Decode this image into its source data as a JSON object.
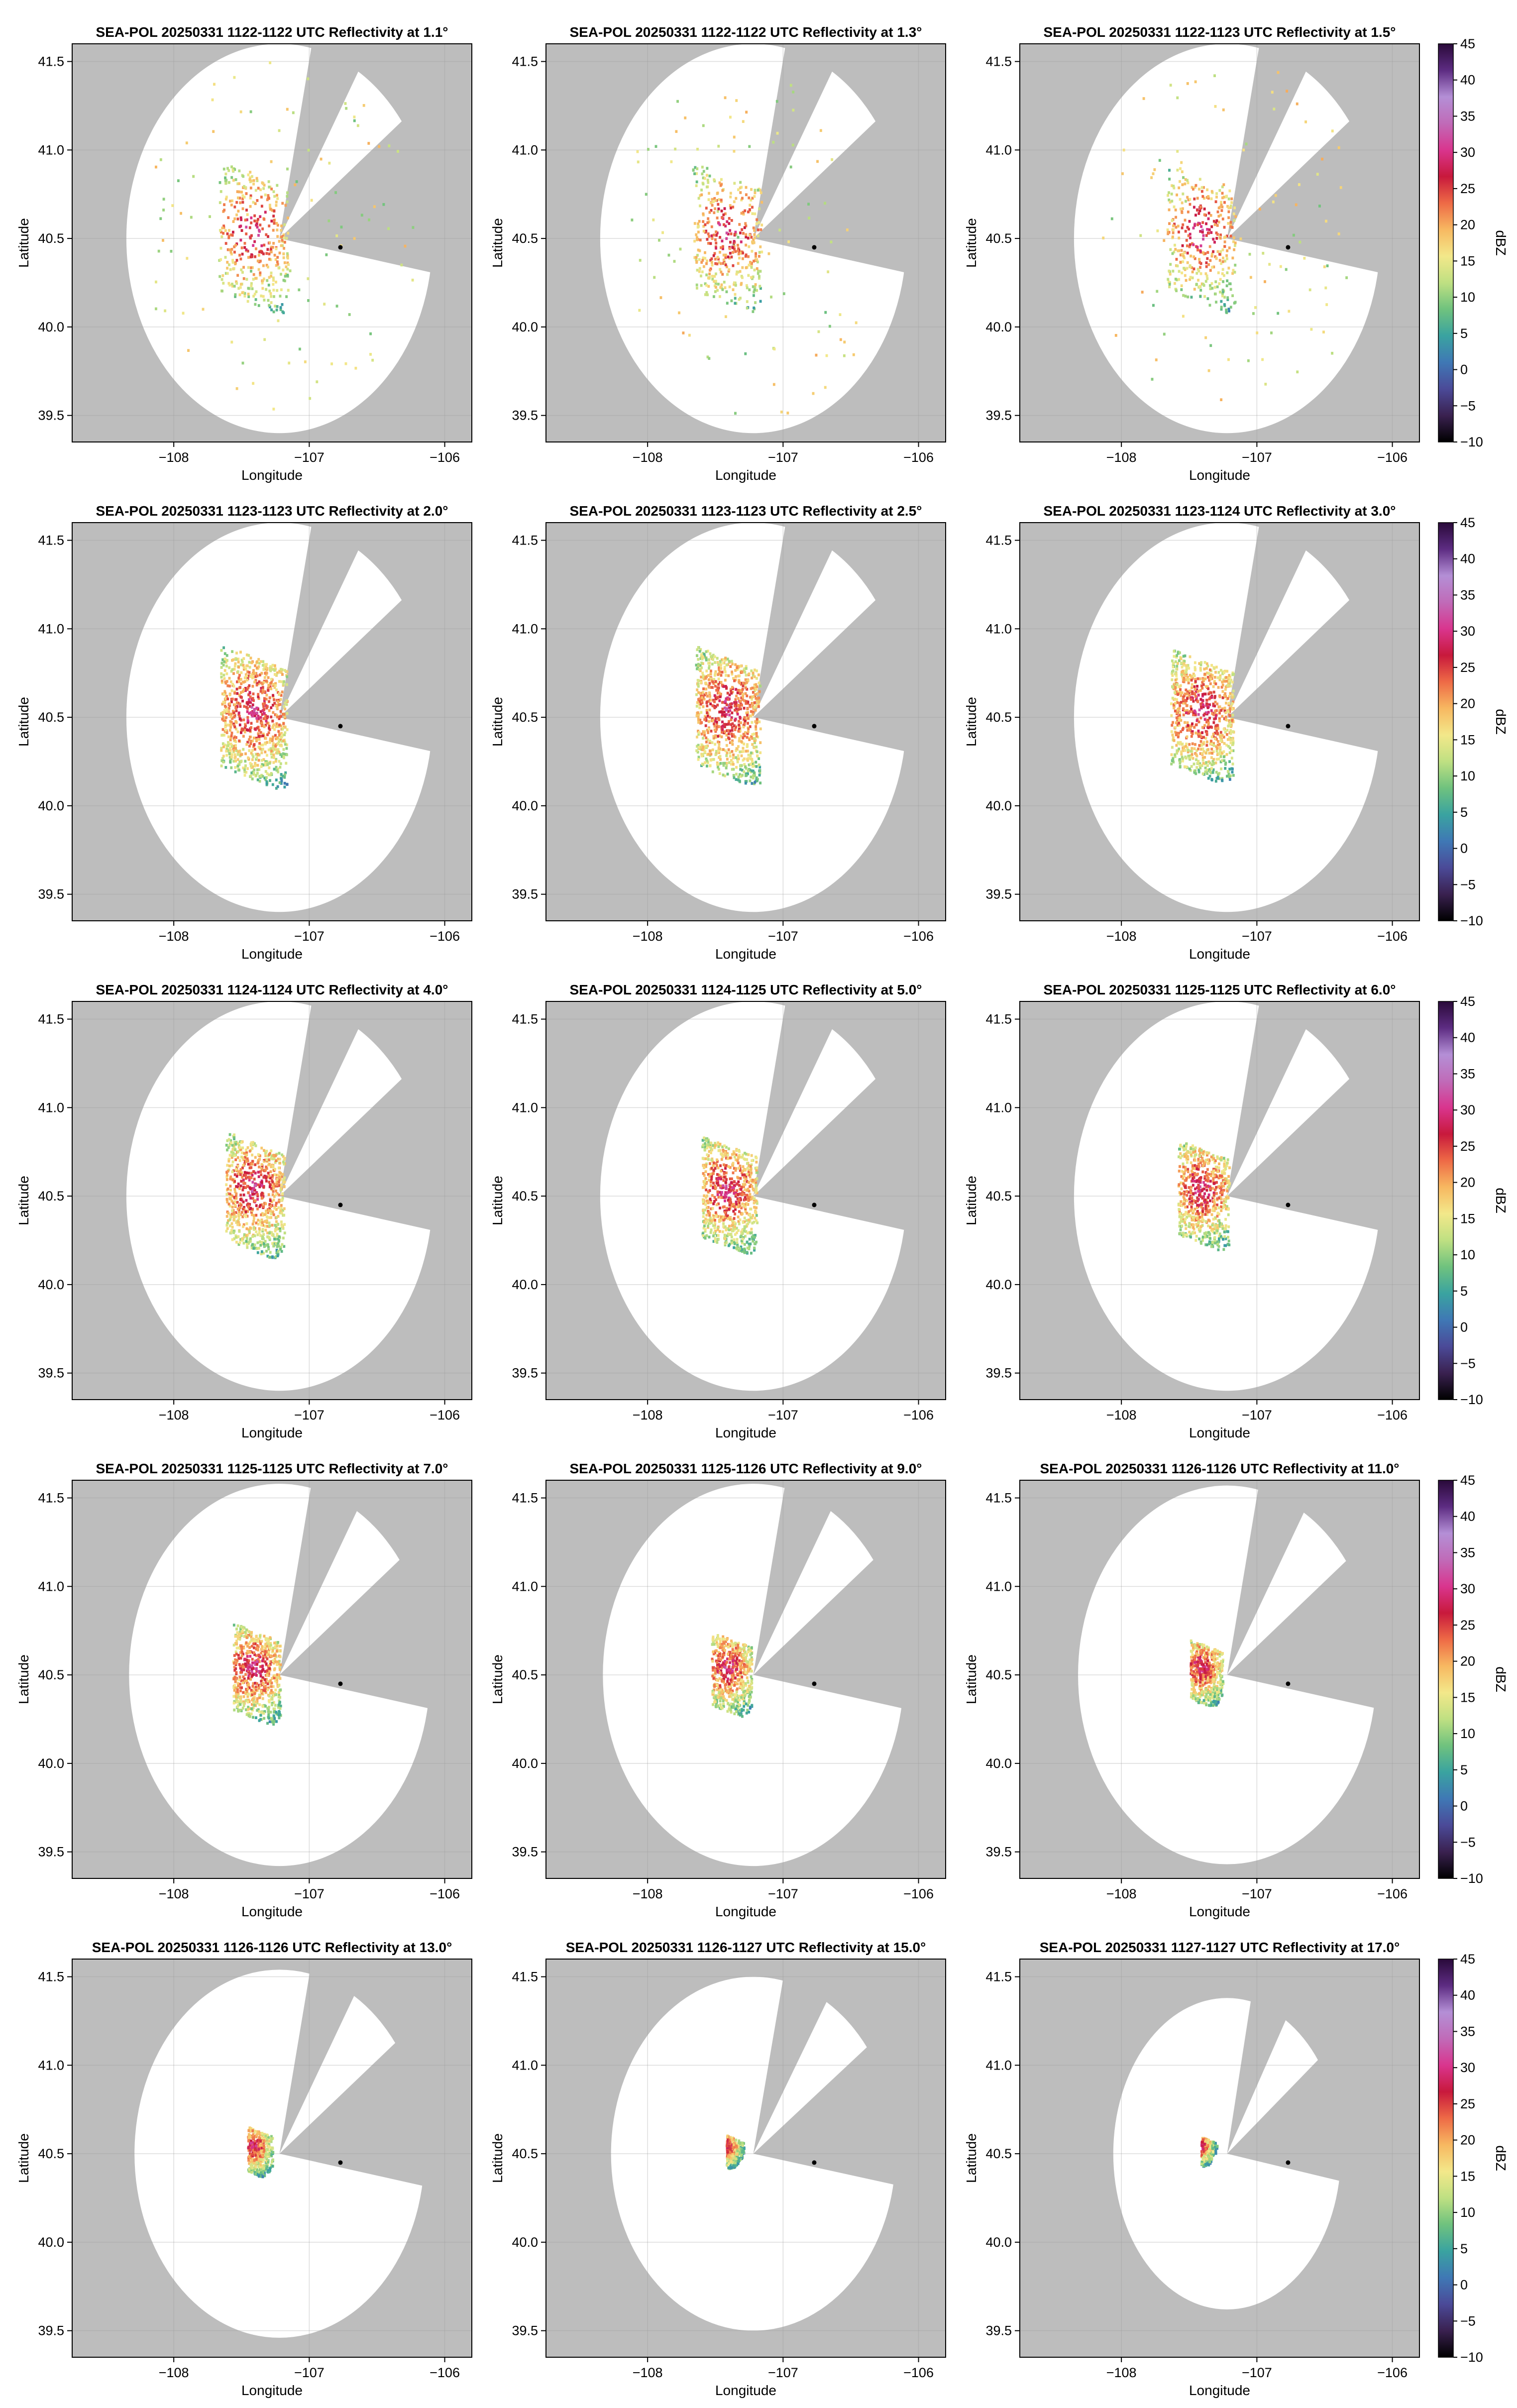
{
  "figure": {
    "colorbar_label": "dBZ",
    "colorbar_ticks": [
      -10,
      -5,
      0,
      5,
      10,
      15,
      20,
      25,
      30,
      35,
      40,
      45
    ],
    "colorbar_range": [
      -10,
      45
    ],
    "colormap_stops": [
      "#000000",
      "#3a2150",
      "#4b4a98",
      "#3f78b5",
      "#3aa3a0",
      "#6fc27e",
      "#bfe082",
      "#f3e88a",
      "#f7b861",
      "#ee6a46",
      "#c8193c",
      "#d9358e",
      "#c06bb8",
      "#b48fd6",
      "#5d2c82",
      "#2a0a3a"
    ]
  },
  "chart_data": [
    {
      "type": "heatmap",
      "title": "SEA-POL 20250331 1122-1122 UTC Reflectivity at 1.1°",
      "elevation_deg": 1.1,
      "xlabel": "Longitude",
      "ylabel": "Latitude",
      "xlim": [
        -108.75,
        -105.8
      ],
      "ylim": [
        39.35,
        41.6
      ],
      "x_ticks": [
        -108,
        -107,
        -106
      ],
      "x_tick_labels": [
        "−108",
        "−107",
        "−106"
      ],
      "y_ticks": [
        39.5,
        40.0,
        40.5,
        41.0,
        41.5
      ],
      "y_tick_labels": [
        "39.5",
        "40.0",
        "40.5",
        "41.0",
        "41.5"
      ],
      "radar_center": [
        -107.22,
        40.5
      ],
      "marker": [
        -106.77,
        40.45
      ],
      "range_deg": 1.13,
      "range_lat_deg": 1.1,
      "blocked_sectors_deg": [
        [
          12,
          31
        ],
        [
          53,
          100
        ]
      ]
    },
    {
      "type": "heatmap",
      "title": "SEA-POL 20250331 1122-1122 UTC Reflectivity at 1.3°",
      "elevation_deg": 1.3,
      "xlabel": "Longitude",
      "ylabel": "Latitude",
      "xlim": [
        -108.75,
        -105.8
      ],
      "ylim": [
        39.35,
        41.6
      ],
      "x_ticks": [
        -108,
        -107,
        -106
      ],
      "x_tick_labels": [
        "−108",
        "−107",
        "−106"
      ],
      "y_ticks": [
        39.5,
        40.0,
        40.5,
        41.0,
        41.5
      ],
      "y_tick_labels": [
        "39.5",
        "40.0",
        "40.5",
        "41.0",
        "41.5"
      ],
      "radar_center": [
        -107.22,
        40.5
      ],
      "marker": [
        -106.77,
        40.45
      ],
      "range_deg": 1.13,
      "range_lat_deg": 1.1,
      "blocked_sectors_deg": [
        [
          12,
          31
        ],
        [
          53,
          100
        ]
      ]
    },
    {
      "type": "heatmap",
      "title": "SEA-POL 20250331 1122-1123 UTC Reflectivity at 1.5°",
      "elevation_deg": 1.5,
      "xlabel": "Longitude",
      "ylabel": "Latitude",
      "xlim": [
        -108.75,
        -105.8
      ],
      "ylim": [
        39.35,
        41.6
      ],
      "x_ticks": [
        -108,
        -107,
        -106
      ],
      "x_tick_labels": [
        "−108",
        "−107",
        "−106"
      ],
      "y_ticks": [
        39.5,
        40.0,
        40.5,
        41.0,
        41.5
      ],
      "y_tick_labels": [
        "39.5",
        "40.0",
        "40.5",
        "41.0",
        "41.5"
      ],
      "radar_center": [
        -107.22,
        40.5
      ],
      "marker": [
        -106.77,
        40.45
      ],
      "range_deg": 1.13,
      "range_lat_deg": 1.1,
      "blocked_sectors_deg": [
        [
          12,
          31
        ],
        [
          53,
          100
        ]
      ]
    },
    {
      "type": "heatmap",
      "title": "SEA-POL 20250331 1123-1123 UTC Reflectivity at 2.0°",
      "elevation_deg": 2.0,
      "xlabel": "Longitude",
      "ylabel": "Latitude",
      "xlim": [
        -108.75,
        -105.8
      ],
      "ylim": [
        39.35,
        41.6
      ],
      "x_ticks": [
        -108,
        -107,
        -106
      ],
      "x_tick_labels": [
        "−108",
        "−107",
        "−106"
      ],
      "y_ticks": [
        39.5,
        40.0,
        40.5,
        41.0,
        41.5
      ],
      "y_tick_labels": [
        "39.5",
        "40.0",
        "40.5",
        "41.0",
        "41.5"
      ],
      "radar_center": [
        -107.22,
        40.5
      ],
      "marker": [
        -106.77,
        40.45
      ],
      "range_deg": 1.13,
      "range_lat_deg": 1.1,
      "blocked_sectors_deg": [
        [
          12,
          31
        ],
        [
          53,
          100
        ]
      ]
    },
    {
      "type": "heatmap",
      "title": "SEA-POL 20250331 1123-1123 UTC Reflectivity at 2.5°",
      "elevation_deg": 2.5,
      "xlabel": "Longitude",
      "ylabel": "Latitude",
      "xlim": [
        -108.75,
        -105.8
      ],
      "ylim": [
        39.35,
        41.6
      ],
      "x_ticks": [
        -108,
        -107,
        -106
      ],
      "x_tick_labels": [
        "−108",
        "−107",
        "−106"
      ],
      "y_ticks": [
        39.5,
        40.0,
        40.5,
        41.0,
        41.5
      ],
      "y_tick_labels": [
        "39.5",
        "40.0",
        "40.5",
        "41.0",
        "41.5"
      ],
      "radar_center": [
        -107.22,
        40.5
      ],
      "marker": [
        -106.77,
        40.45
      ],
      "range_deg": 1.13,
      "range_lat_deg": 1.1,
      "blocked_sectors_deg": [
        [
          12,
          31
        ],
        [
          53,
          100
        ]
      ]
    },
    {
      "type": "heatmap",
      "title": "SEA-POL 20250331 1123-1124 UTC Reflectivity at 3.0°",
      "elevation_deg": 3.0,
      "xlabel": "Longitude",
      "ylabel": "Latitude",
      "xlim": [
        -108.75,
        -105.8
      ],
      "ylim": [
        39.35,
        41.6
      ],
      "x_ticks": [
        -108,
        -107,
        -106
      ],
      "x_tick_labels": [
        "−108",
        "−107",
        "−106"
      ],
      "y_ticks": [
        39.5,
        40.0,
        40.5,
        41.0,
        41.5
      ],
      "y_tick_labels": [
        "39.5",
        "40.0",
        "40.5",
        "41.0",
        "41.5"
      ],
      "radar_center": [
        -107.22,
        40.5
      ],
      "marker": [
        -106.77,
        40.45
      ],
      "range_deg": 1.13,
      "range_lat_deg": 1.1,
      "blocked_sectors_deg": [
        [
          12,
          31
        ],
        [
          53,
          100
        ]
      ]
    },
    {
      "type": "heatmap",
      "title": "SEA-POL 20250331 1124-1124 UTC Reflectivity at 4.0°",
      "elevation_deg": 4.0,
      "xlabel": "Longitude",
      "ylabel": "Latitude",
      "xlim": [
        -108.75,
        -105.8
      ],
      "ylim": [
        39.35,
        41.6
      ],
      "x_ticks": [
        -108,
        -107,
        -106
      ],
      "x_tick_labels": [
        "−108",
        "−107",
        "−106"
      ],
      "y_ticks": [
        39.5,
        40.0,
        40.5,
        41.0,
        41.5
      ],
      "y_tick_labels": [
        "39.5",
        "40.0",
        "40.5",
        "41.0",
        "41.5"
      ],
      "radar_center": [
        -107.22,
        40.5
      ],
      "marker": [
        -106.77,
        40.45
      ],
      "range_deg": 1.13,
      "range_lat_deg": 1.1,
      "blocked_sectors_deg": [
        [
          12,
          31
        ],
        [
          53,
          100
        ]
      ]
    },
    {
      "type": "heatmap",
      "title": "SEA-POL 20250331 1124-1125 UTC Reflectivity at 5.0°",
      "elevation_deg": 5.0,
      "xlabel": "Longitude",
      "ylabel": "Latitude",
      "xlim": [
        -108.75,
        -105.8
      ],
      "ylim": [
        39.35,
        41.6
      ],
      "x_ticks": [
        -108,
        -107,
        -106
      ],
      "x_tick_labels": [
        "−108",
        "−107",
        "−106"
      ],
      "y_ticks": [
        39.5,
        40.0,
        40.5,
        41.0,
        41.5
      ],
      "y_tick_labels": [
        "39.5",
        "40.0",
        "40.5",
        "41.0",
        "41.5"
      ],
      "radar_center": [
        -107.22,
        40.5
      ],
      "marker": [
        -106.77,
        40.45
      ],
      "range_deg": 1.13,
      "range_lat_deg": 1.1,
      "blocked_sectors_deg": [
        [
          12,
          31
        ],
        [
          53,
          100
        ]
      ]
    },
    {
      "type": "heatmap",
      "title": "SEA-POL 20250331 1125-1125 UTC Reflectivity at 6.0°",
      "elevation_deg": 6.0,
      "xlabel": "Longitude",
      "ylabel": "Latitude",
      "xlim": [
        -108.75,
        -105.8
      ],
      "ylim": [
        39.35,
        41.6
      ],
      "x_ticks": [
        -108,
        -107,
        -106
      ],
      "x_tick_labels": [
        "−108",
        "−107",
        "−106"
      ],
      "y_ticks": [
        39.5,
        40.0,
        40.5,
        41.0,
        41.5
      ],
      "y_tick_labels": [
        "39.5",
        "40.0",
        "40.5",
        "41.0",
        "41.5"
      ],
      "radar_center": [
        -107.22,
        40.5
      ],
      "marker": [
        -106.77,
        40.45
      ],
      "range_deg": 1.13,
      "range_lat_deg": 1.1,
      "blocked_sectors_deg": [
        [
          12,
          31
        ],
        [
          53,
          100
        ]
      ]
    },
    {
      "type": "heatmap",
      "title": "SEA-POL 20250331 1125-1125 UTC Reflectivity at 7.0°",
      "elevation_deg": 7.0,
      "xlabel": "Longitude",
      "ylabel": "Latitude",
      "xlim": [
        -108.75,
        -105.8
      ],
      "ylim": [
        39.35,
        41.6
      ],
      "x_ticks": [
        -108,
        -107,
        -106
      ],
      "x_tick_labels": [
        "−108",
        "−107",
        "−106"
      ],
      "y_ticks": [
        39.5,
        40.0,
        40.5,
        41.0,
        41.5
      ],
      "y_tick_labels": [
        "39.5",
        "40.0",
        "40.5",
        "41.0",
        "41.5"
      ],
      "radar_center": [
        -107.22,
        40.5
      ],
      "marker": [
        -106.77,
        40.45
      ],
      "range_deg": 1.11,
      "range_lat_deg": 1.08,
      "blocked_sectors_deg": [
        [
          12,
          31
        ],
        [
          53,
          100
        ]
      ]
    },
    {
      "type": "heatmap",
      "title": "SEA-POL 20250331 1125-1126 UTC Reflectivity at 9.0°",
      "elevation_deg": 9.0,
      "xlabel": "Longitude",
      "ylabel": "Latitude",
      "xlim": [
        -108.75,
        -105.8
      ],
      "ylim": [
        39.35,
        41.6
      ],
      "x_ticks": [
        -108,
        -107,
        -106
      ],
      "x_tick_labels": [
        "−108",
        "−107",
        "−106"
      ],
      "y_ticks": [
        39.5,
        40.0,
        40.5,
        41.0,
        41.5
      ],
      "y_tick_labels": [
        "39.5",
        "40.0",
        "40.5",
        "41.0",
        "41.5"
      ],
      "radar_center": [
        -107.22,
        40.5
      ],
      "marker": [
        -106.77,
        40.45
      ],
      "range_deg": 1.11,
      "range_lat_deg": 1.08,
      "blocked_sectors_deg": [
        [
          12,
          31
        ],
        [
          53,
          100
        ]
      ]
    },
    {
      "type": "heatmap",
      "title": "SEA-POL 20250331 1126-1126 UTC Reflectivity at 11.0°",
      "elevation_deg": 11.0,
      "xlabel": "Longitude",
      "ylabel": "Latitude",
      "xlim": [
        -108.75,
        -105.8
      ],
      "ylim": [
        39.35,
        41.6
      ],
      "x_ticks": [
        -108,
        -107,
        -106
      ],
      "x_tick_labels": [
        "−108",
        "−107",
        "−106"
      ],
      "y_ticks": [
        39.5,
        40.0,
        40.5,
        41.0,
        41.5
      ],
      "y_tick_labels": [
        "39.5",
        "40.0",
        "40.5",
        "41.0",
        "41.5"
      ],
      "radar_center": [
        -107.22,
        40.5
      ],
      "marker": [
        -106.77,
        40.45
      ],
      "range_deg": 1.1,
      "range_lat_deg": 1.07,
      "blocked_sectors_deg": [
        [
          12,
          31
        ],
        [
          53,
          100
        ]
      ]
    },
    {
      "type": "heatmap",
      "title": "SEA-POL 20250331 1126-1126 UTC Reflectivity at 13.0°",
      "elevation_deg": 13.0,
      "xlabel": "Longitude",
      "ylabel": "Latitude",
      "xlim": [
        -108.75,
        -105.8
      ],
      "ylim": [
        39.35,
        41.6
      ],
      "x_ticks": [
        -108,
        -107,
        -106
      ],
      "x_tick_labels": [
        "−108",
        "−107",
        "−106"
      ],
      "y_ticks": [
        39.5,
        40.0,
        40.5,
        41.0,
        41.5
      ],
      "y_tick_labels": [
        "39.5",
        "40.0",
        "40.5",
        "41.0",
        "41.5"
      ],
      "radar_center": [
        -107.22,
        40.5
      ],
      "marker": [
        -106.77,
        40.45
      ],
      "range_deg": 1.07,
      "range_lat_deg": 1.04,
      "blocked_sectors_deg": [
        [
          12,
          31
        ],
        [
          53,
          100
        ]
      ]
    },
    {
      "type": "heatmap",
      "title": "SEA-POL 20250331 1126-1127 UTC Reflectivity at 15.0°",
      "elevation_deg": 15.0,
      "xlabel": "Longitude",
      "ylabel": "Latitude",
      "xlim": [
        -108.75,
        -105.8
      ],
      "ylim": [
        39.35,
        41.6
      ],
      "x_ticks": [
        -108,
        -107,
        -106
      ],
      "x_tick_labels": [
        "−108",
        "−107",
        "−106"
      ],
      "y_ticks": [
        39.5,
        40.0,
        40.5,
        41.0,
        41.5
      ],
      "y_tick_labels": [
        "39.5",
        "40.0",
        "40.5",
        "41.0",
        "41.5"
      ],
      "radar_center": [
        -107.22,
        40.5
      ],
      "marker": [
        -106.77,
        40.45
      ],
      "range_deg": 1.05,
      "range_lat_deg": 1.0,
      "blocked_sectors_deg": [
        [
          12,
          31
        ],
        [
          53,
          100
        ]
      ]
    },
    {
      "type": "heatmap",
      "title": "SEA-POL 20250331 1127-1127 UTC Reflectivity at 17.0°",
      "elevation_deg": 17.0,
      "xlabel": "Longitude",
      "ylabel": "Latitude",
      "xlim": [
        -108.75,
        -105.8
      ],
      "ylim": [
        39.35,
        41.6
      ],
      "x_ticks": [
        -108,
        -107,
        -106
      ],
      "x_tick_labels": [
        "−108",
        "−107",
        "−106"
      ],
      "y_ticks": [
        39.5,
        40.0,
        40.5,
        41.0,
        41.5
      ],
      "y_tick_labels": [
        "39.5",
        "40.0",
        "40.5",
        "41.0",
        "41.5"
      ],
      "radar_center": [
        -107.22,
        40.5
      ],
      "marker": [
        -106.77,
        40.45
      ],
      "range_deg": 0.84,
      "range_lat_deg": 0.88,
      "blocked_sectors_deg": [
        [
          12,
          31
        ],
        [
          53,
          100
        ]
      ]
    }
  ]
}
